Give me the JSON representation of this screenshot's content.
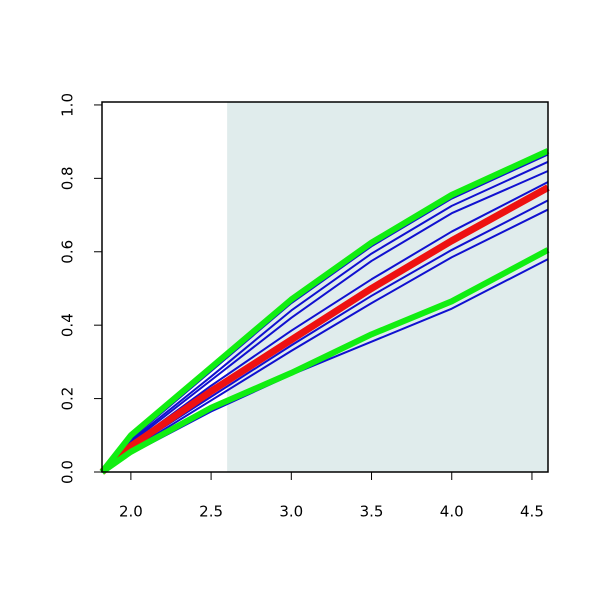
{
  "chart_data": {
    "type": "line",
    "x": [
      1.82,
      2.0,
      2.5,
      3.0,
      3.5,
      4.0,
      4.6
    ],
    "series": [
      {
        "color": "#1010d0",
        "width": 2,
        "values": [
          0,
          0.09,
          0.275,
          0.46,
          0.615,
          0.745,
          0.865
        ]
      },
      {
        "color": "#1010d0",
        "width": 2,
        "values": [
          0,
          0.085,
          0.26,
          0.44,
          0.595,
          0.725,
          0.845
        ]
      },
      {
        "color": "#1010d0",
        "width": 2,
        "values": [
          0,
          0.08,
          0.25,
          0.42,
          0.575,
          0.705,
          0.82
        ]
      },
      {
        "color": "#1010d0",
        "width": 2,
        "values": [
          0,
          0.075,
          0.235,
          0.385,
          0.525,
          0.655,
          0.79
        ]
      },
      {
        "color": "#1010d0",
        "width": 2,
        "values": [
          0,
          0.065,
          0.205,
          0.345,
          0.48,
          0.605,
          0.74
        ]
      },
      {
        "color": "#1010d0",
        "width": 2,
        "values": [
          0,
          0.06,
          0.195,
          0.33,
          0.46,
          0.585,
          0.715
        ]
      },
      {
        "color": "#1010d0",
        "width": 2,
        "values": [
          0,
          0.05,
          0.165,
          0.265,
          0.355,
          0.445,
          0.58
        ]
      },
      {
        "color": "#ee1111",
        "width": 7,
        "values": [
          0,
          0.07,
          0.22,
          0.36,
          0.5,
          0.63,
          0.775
        ]
      },
      {
        "color": "#11ee11",
        "width": 6,
        "values": [
          0,
          0.1,
          0.285,
          0.47,
          0.625,
          0.755,
          0.875
        ]
      },
      {
        "color": "#11ee11",
        "width": 6,
        "values": [
          0,
          0.055,
          0.175,
          0.27,
          0.375,
          0.465,
          0.605
        ]
      }
    ],
    "shade": {
      "from": 2.6,
      "color": "#e0ecec"
    },
    "xlim": [
      1.82,
      4.6
    ],
    "ylim": [
      0,
      1.008
    ],
    "xticks": [
      {
        "value": 2,
        "label": "2.0"
      },
      2.5,
      {
        "value": 3,
        "label": "3.0"
      },
      3.5,
      {
        "value": 4,
        "label": "4.0"
      },
      4.5
    ],
    "yticks": [
      {
        "value": 0,
        "label": "0.0"
      },
      0.2,
      0.4,
      0.6,
      0.8,
      {
        "value": 1,
        "label": "1.0"
      }
    ]
  }
}
